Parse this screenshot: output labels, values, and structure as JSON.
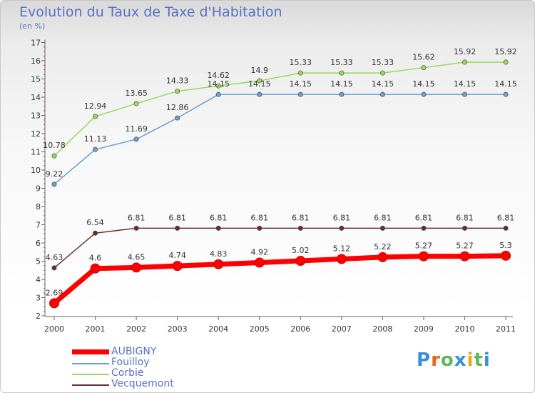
{
  "header": {
    "title": "Evolution du Taux de Taxe d'Habitation",
    "unit": "(en %)"
  },
  "chart_data": {
    "type": "line",
    "title": "Evolution du Taux de Taxe d'Habitation",
    "ylabel": "(en %)",
    "x": [
      "2000",
      "2001",
      "2002",
      "2003",
      "2004",
      "2005",
      "2006",
      "2007",
      "2008",
      "2009",
      "2010",
      "2011"
    ],
    "y_ticks": [
      "2",
      "3",
      "4",
      "5",
      "6",
      "7",
      "8",
      "9",
      "10",
      "11",
      "12",
      "13",
      "14",
      "15",
      "16",
      "17"
    ],
    "ylim": [
      2,
      17
    ],
    "grid": false,
    "legend_position": "bottom-left",
    "series": [
      {
        "name": "Corbie",
        "color": "#99d65c",
        "values": [
          10.78,
          12.94,
          13.65,
          14.33,
          14.62,
          14.9,
          15.33,
          15.33,
          15.33,
          15.62,
          15.92,
          15.92
        ],
        "labels": [
          "10.78",
          "12.94",
          "13.65",
          "14.33",
          "14.62",
          "14.9",
          "15.33",
          "15.33",
          "15.33",
          "15.62",
          "15.92",
          "15.92"
        ]
      },
      {
        "name": "Fouilloy",
        "color": "#6c9fd2",
        "values": [
          9.22,
          11.13,
          11.69,
          12.86,
          14.15,
          14.15,
          14.15,
          14.15,
          14.15,
          14.15,
          14.15,
          14.15
        ],
        "labels": [
          "9.22",
          "11.13",
          "11.69",
          "12.86",
          "14.15",
          "14.15",
          "14.15",
          "14.15",
          "14.15",
          "14.15",
          "14.15",
          "14.15"
        ]
      },
      {
        "name": "Vecquemont",
        "color": "#6b2e2e",
        "values": [
          4.63,
          6.54,
          6.81,
          6.81,
          6.81,
          6.81,
          6.81,
          6.81,
          6.81,
          6.81,
          6.81,
          6.81
        ],
        "labels": [
          "4.63",
          "6.54",
          "6.81",
          "6.81",
          "6.81",
          "6.81",
          "6.81",
          "6.81",
          "6.81",
          "6.81",
          "6.81",
          "6.81"
        ]
      },
      {
        "name": "AUBIGNY",
        "color": "#ff0000",
        "values": [
          2.69,
          4.6,
          4.65,
          4.74,
          4.83,
          4.92,
          5.02,
          5.12,
          5.22,
          5.27,
          5.27,
          5.3
        ],
        "labels": [
          "2.69",
          "4.6",
          "4.65",
          "4.74",
          "4.83",
          "4.92",
          "5.02",
          "5.12",
          "5.22",
          "5.27",
          "5.27",
          "5.3"
        ]
      }
    ]
  },
  "legend": {
    "items": [
      {
        "name": "AUBIGNY",
        "color": "#ff0000"
      },
      {
        "name": "Fouilloy",
        "color": "#6c9fd2"
      },
      {
        "name": "Corbie",
        "color": "#99d65c"
      },
      {
        "name": "Vecquemont",
        "color": "#6b2e2e"
      }
    ]
  },
  "logo": {
    "text": "Proxiti",
    "letters": [
      "P",
      "r",
      "o",
      "x",
      "i",
      "t",
      "i"
    ],
    "colors": [
      "#3a8fd8",
      "#e8641e",
      "#5cb85c",
      "#3a8fd8",
      "#e8a61e",
      "#5cb85c",
      "#3a8fd8"
    ]
  }
}
